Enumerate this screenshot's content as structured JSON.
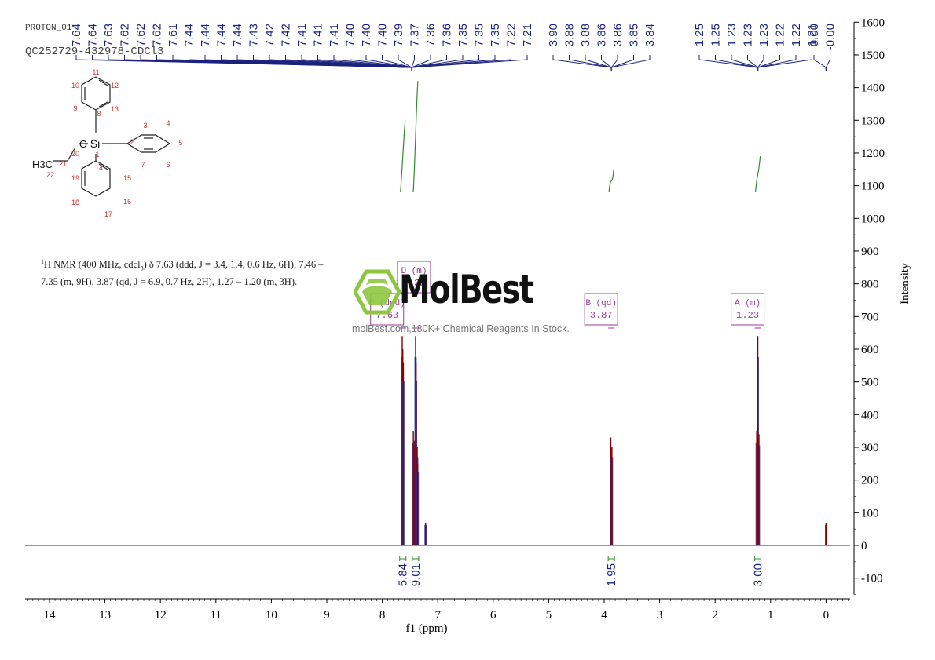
{
  "header": {
    "experiment": "PROTON_01",
    "sample": "QC252729-432978-CDCl3"
  },
  "watermark": {
    "brand": "MolBest",
    "tagline": "molBest.com,180K+ Chemical Reagents In Stock.",
    "logo_color": "#8dc63f"
  },
  "nmr_text": {
    "sup": "1",
    "pre": "H NMR (400 MHz, cdcl",
    "sub": "3",
    "post": ") δ 7.63 (ddd, J = 3.4, 1.4, 0.6 Hz, 6H), 7.46 – 7.35 (m, 9H), 3.87 (qd, J = 6.9, 0.7 Hz, 2H), 1.27 – 1.20 (m, 3H)."
  },
  "structure": {
    "atoms": [
      "O",
      "Si",
      "H3C"
    ],
    "numbers": [
      "1",
      "2",
      "3",
      "4",
      "5",
      "6",
      "7",
      "8",
      "9",
      "10",
      "11",
      "12",
      "13",
      "14",
      "15",
      "16",
      "17",
      "18",
      "19",
      "20",
      "21",
      "22"
    ]
  },
  "chart_data": {
    "type": "line",
    "title": "",
    "xlabel": "f1 (ppm)",
    "ylabel": "Intensity",
    "xlim": [
      14.5,
      -0.5
    ],
    "ylim": [
      -150,
      1600
    ],
    "x_ticks": [
      14,
      13,
      12,
      11,
      10,
      9,
      8,
      7,
      6,
      5,
      4,
      3,
      2,
      1,
      0
    ],
    "y_ticks": [
      -100,
      0,
      100,
      200,
      300,
      400,
      500,
      600,
      700,
      800,
      900,
      1000,
      1100,
      1200,
      1300,
      1400,
      1500,
      1600
    ],
    "peaks": [
      {
        "ppm": 7.64,
        "height": 640
      },
      {
        "ppm": 7.63,
        "height": 600
      },
      {
        "ppm": 7.62,
        "height": 560
      },
      {
        "ppm": 7.44,
        "height": 350
      },
      {
        "ppm": 7.42,
        "height": 320
      },
      {
        "ppm": 7.4,
        "height": 640
      },
      {
        "ppm": 7.39,
        "height": 560
      },
      {
        "ppm": 7.37,
        "height": 300
      },
      {
        "ppm": 7.36,
        "height": 250
      },
      {
        "ppm": 7.22,
        "height": 70
      },
      {
        "ppm": 3.88,
        "height": 330
      },
      {
        "ppm": 3.86,
        "height": 300
      },
      {
        "ppm": 1.25,
        "height": 350
      },
      {
        "ppm": 1.23,
        "height": 640
      },
      {
        "ppm": 1.21,
        "height": 340
      },
      {
        "ppm": 0.0,
        "height": 70
      }
    ],
    "peak_labels": {
      "group1": [
        "7.64",
        "7.64",
        "7.63",
        "7.62",
        "7.62",
        "7.62",
        "7.61",
        "7.44",
        "7.44",
        "7.44",
        "7.44",
        "7.43",
        "7.42",
        "7.42",
        "7.41",
        "7.41",
        "7.41",
        "7.40",
        "7.40",
        "7.40",
        "7.39",
        "7.37",
        "7.36",
        "7.36",
        "7.35",
        "7.35",
        "7.35",
        "7.22",
        "7.21"
      ],
      "group2": [
        "3.90",
        "3.88",
        "3.88",
        "3.86",
        "3.86",
        "3.85",
        "3.84"
      ],
      "group3": [
        "1.25",
        "1.25",
        "1.23",
        "1.23",
        "1.23",
        "1.22",
        "1.22",
        "1.21"
      ],
      "group4": [
        "0.00",
        "-0.00"
      ]
    },
    "multiplets": [
      {
        "letter": "C",
        "type": "(ddd)",
        "shift": "7.63",
        "ppm": 7.63
      },
      {
        "letter": "D",
        "type": "(m)",
        "shift": "7.39",
        "ppm": 7.4
      },
      {
        "letter": "B",
        "type": "(qd)",
        "shift": "3.87",
        "ppm": 3.87
      },
      {
        "letter": "A",
        "type": "(m)",
        "shift": "1.23",
        "ppm": 1.23
      }
    ],
    "integrals": [
      {
        "ppm": 7.63,
        "value": "5.84",
        "curve_bottom": 1080,
        "curve_top": 1300
      },
      {
        "ppm": 7.4,
        "value": "9.01",
        "curve_bottom": 1080,
        "curve_top": 1420
      },
      {
        "ppm": 3.87,
        "value": "1.95",
        "curve_bottom": 1080,
        "curve_top": 1150
      },
      {
        "ppm": 1.23,
        "value": "3.00",
        "curve_bottom": 1080,
        "curve_top": 1190
      }
    ],
    "colors": {
      "spectrum": "#8b0000",
      "peak_fill": "#1f2f8f",
      "label_line": "#1a237e",
      "multiplet": "#9b3a9b",
      "integral": "#2e8b2e"
    }
  }
}
